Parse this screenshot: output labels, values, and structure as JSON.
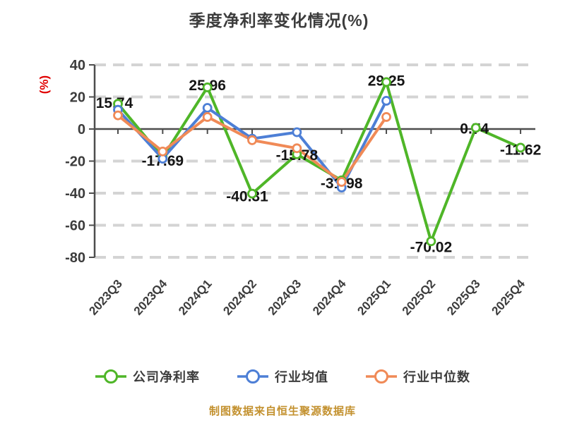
{
  "title": "季度净利率变化情况(%)",
  "y_axis": {
    "unit": "(%)",
    "ticks": [
      40,
      20,
      0,
      -20,
      -40,
      -60,
      -80
    ]
  },
  "source_note": "制图数据来自恒生聚源数据库",
  "colors": {
    "company_line": "#4fb628",
    "industry_mean_line": "#4d7fd6",
    "industry_median_line": "#f08a57",
    "grid": "#d4d4d4",
    "axis": "#4d4d4d",
    "title_text": "#3c3c3c",
    "data_label": "#151515",
    "unit_red": "#e00000",
    "source_text": "#c3912f"
  },
  "chart_data": {
    "type": "line",
    "title": "季度净利率变化情况(%)",
    "categories": [
      "2023Q3",
      "2023Q4",
      "2024Q1",
      "2024Q2",
      "2024Q3",
      "2024Q4",
      "2025Q1",
      "2025Q2",
      "2025Q3",
      "2025Q4"
    ],
    "series": [
      {
        "name": "公司净利率",
        "color": "#4fb628",
        "values": [
          15.74,
          -17.69,
          25.96,
          -40.31,
          -15.78,
          -31.98,
          29.25,
          -70.02,
          0.74,
          -11.62
        ],
        "data_labels": true
      },
      {
        "name": "行业均值",
        "color": "#4d7fd6",
        "values": [
          12,
          -18.5,
          13.2,
          -6,
          -2,
          -36.5,
          17.6,
          null,
          null,
          null
        ],
        "data_labels": false
      },
      {
        "name": "行业中位数",
        "color": "#f08a57",
        "values": [
          8.5,
          -14,
          7.5,
          -7,
          -12,
          -33,
          7.5,
          null,
          null,
          null
        ],
        "data_labels": false
      }
    ],
    "ylabel": "(%)",
    "ylim": [
      -80,
      40
    ],
    "yticks": [
      40,
      20,
      0,
      -20,
      -40,
      -60,
      -80
    ],
    "grid": "dashed-horizontal",
    "legend_position": "bottom",
    "marker": "circle-white-fill"
  },
  "legend": {
    "items": [
      {
        "label": "公司净利率",
        "color": "#4fb628"
      },
      {
        "label": "行业均值",
        "color": "#4d7fd6"
      },
      {
        "label": "行业中位数",
        "color": "#f08a57"
      }
    ]
  }
}
